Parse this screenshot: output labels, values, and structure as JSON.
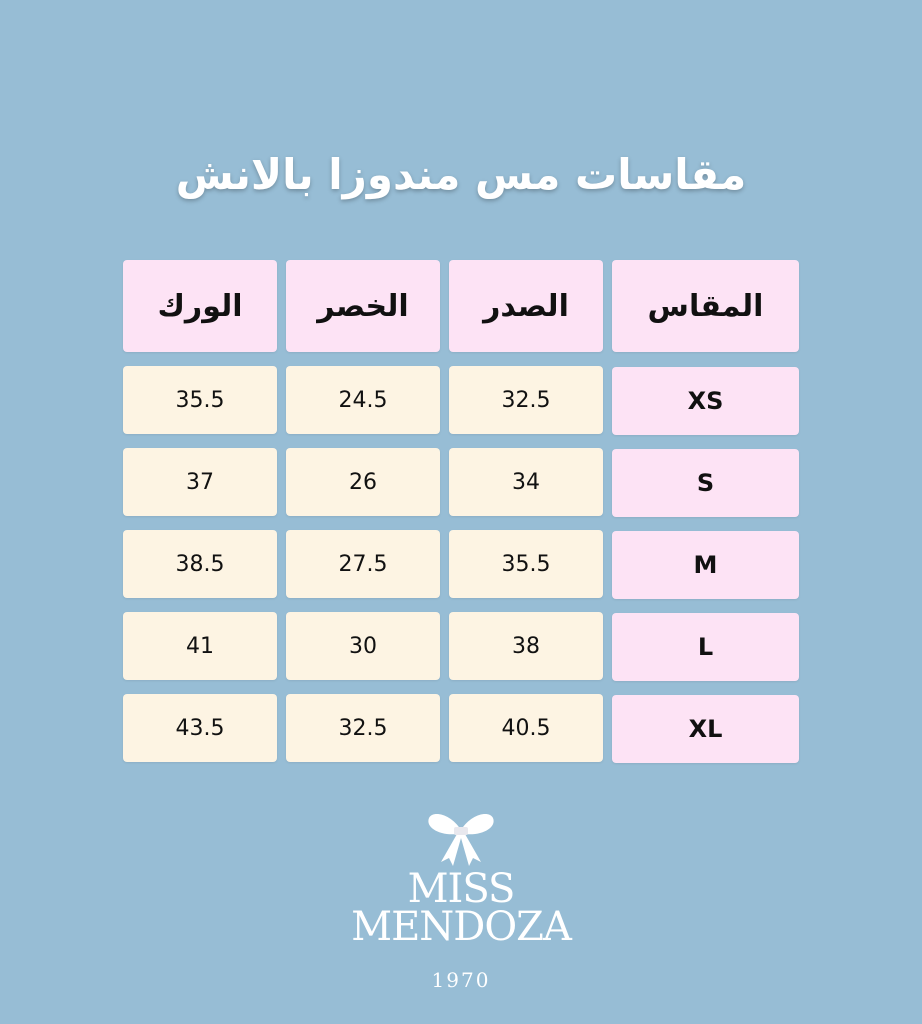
{
  "title": "مقاسات مس مندوزا بالانش",
  "table": {
    "headers": [
      "المقاس",
      "الصدر",
      "الخصر",
      "الورك"
    ],
    "rows": [
      {
        "size": "XS",
        "bust": "32.5",
        "waist": "24.5",
        "hip": "35.5"
      },
      {
        "size": "S",
        "bust": "34",
        "waist": "26",
        "hip": "37"
      },
      {
        "size": "M",
        "bust": "35.5",
        "waist": "27.5",
        "hip": "38.5"
      },
      {
        "size": "L",
        "bust": "38",
        "waist": "30",
        "hip": "41"
      },
      {
        "size": "XL",
        "bust": "40.5",
        "waist": "32.5",
        "hip": "43.5"
      }
    ]
  },
  "logo": {
    "line1": "MISS",
    "line2": "MENDOZA",
    "year": "1970",
    "icon": "bow-icon"
  },
  "colors": {
    "background": "#97bdd5",
    "header_cell": "#fde3f5",
    "value_cell": "#fdf4e3"
  }
}
